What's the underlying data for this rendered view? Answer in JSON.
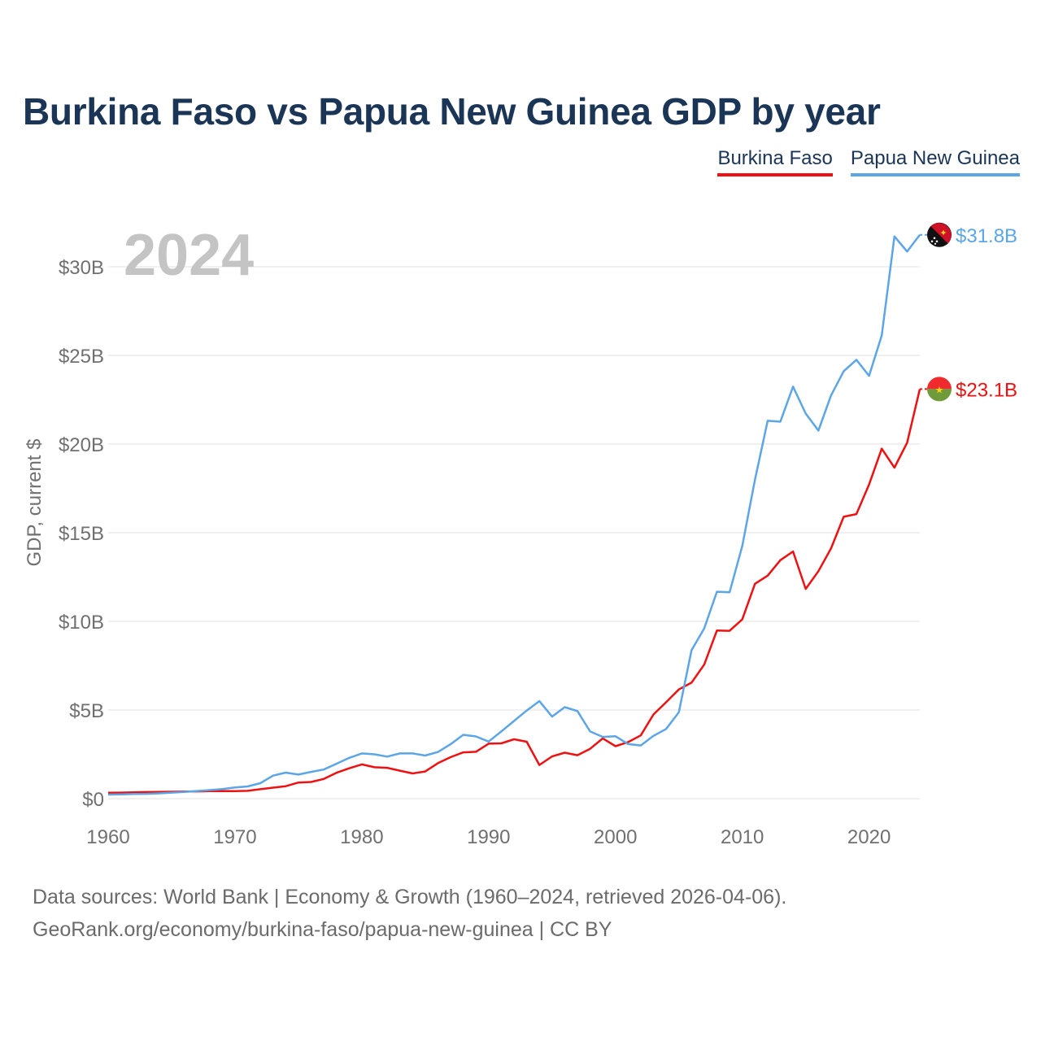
{
  "title": "Burkina Faso vs Papua New Guinea GDP by year",
  "chart_data": {
    "type": "line",
    "title": "Burkina Faso vs Papua New Guinea GDP by year",
    "ylabel": "GDP, current $",
    "xlabel": "",
    "year_watermark": "2024",
    "xlim": [
      1960,
      2024
    ],
    "ylim": [
      0,
      33
    ],
    "x_ticks": [
      1960,
      1970,
      1980,
      1990,
      2000,
      2010,
      2020
    ],
    "x_tick_labels": [
      "1960",
      "1970",
      "1980",
      "1990",
      "2000",
      "2010",
      "2020"
    ],
    "y_ticks": [
      0,
      5,
      10,
      15,
      20,
      25,
      30
    ],
    "y_tick_labels": [
      "$0",
      "$5B",
      "$10B",
      "$15B",
      "$20B",
      "$25B",
      "$30B"
    ],
    "units": "billions of current US dollars",
    "grid": true,
    "legend_position": "top-right",
    "x": [
      1960,
      1961,
      1962,
      1963,
      1964,
      1965,
      1966,
      1967,
      1968,
      1969,
      1970,
      1971,
      1972,
      1973,
      1974,
      1975,
      1976,
      1977,
      1978,
      1979,
      1980,
      1981,
      1982,
      1983,
      1984,
      1985,
      1986,
      1987,
      1988,
      1989,
      1990,
      1991,
      1992,
      1993,
      1994,
      1995,
      1996,
      1997,
      1998,
      1999,
      2000,
      2001,
      2002,
      2003,
      2004,
      2005,
      2006,
      2007,
      2008,
      2009,
      2010,
      2011,
      2012,
      2013,
      2014,
      2015,
      2016,
      2017,
      2018,
      2019,
      2020,
      2021,
      2022,
      2023,
      2024
    ],
    "series": [
      {
        "name": "Burkina Faso",
        "color": "#ee1111",
        "end_label": "$23.1B",
        "values": [
          0.33,
          0.34,
          0.36,
          0.37,
          0.38,
          0.39,
          0.4,
          0.41,
          0.42,
          0.43,
          0.42,
          0.44,
          0.53,
          0.62,
          0.7,
          0.91,
          0.94,
          1.11,
          1.46,
          1.71,
          1.93,
          1.77,
          1.74,
          1.58,
          1.42,
          1.53,
          2.0,
          2.34,
          2.61,
          2.64,
          3.1,
          3.12,
          3.35,
          3.21,
          1.9,
          2.38,
          2.59,
          2.45,
          2.81,
          3.4,
          2.96,
          3.19,
          3.57,
          4.75,
          5.44,
          6.16,
          6.54,
          7.56,
          9.48,
          9.47,
          10.11,
          12.12,
          12.58,
          13.45,
          13.94,
          11.83,
          12.83,
          14.11,
          15.9,
          16.05,
          17.72,
          19.74,
          18.67,
          20.08,
          23.1
        ]
      },
      {
        "name": "Papua New Guinea",
        "color": "#5ca5e6",
        "end_label": "$31.8B",
        "values": [
          0.23,
          0.24,
          0.26,
          0.27,
          0.3,
          0.34,
          0.38,
          0.43,
          0.48,
          0.54,
          0.63,
          0.69,
          0.87,
          1.3,
          1.47,
          1.36,
          1.51,
          1.64,
          1.97,
          2.3,
          2.55,
          2.5,
          2.37,
          2.55,
          2.55,
          2.43,
          2.63,
          3.07,
          3.6,
          3.51,
          3.22,
          3.79,
          4.38,
          4.97,
          5.5,
          4.63,
          5.16,
          4.94,
          3.79,
          3.48,
          3.52,
          3.08,
          3.0,
          3.54,
          3.93,
          4.87,
          8.37,
          9.6,
          11.67,
          11.64,
          14.25,
          17.99,
          21.31,
          21.26,
          23.24,
          21.72,
          20.76,
          22.74,
          24.11,
          24.75,
          23.85,
          26.13,
          31.71,
          30.86,
          31.8
        ]
      }
    ]
  },
  "sources": {
    "line1": "Data sources: World Bank | Economy & Growth (1960–2024, retrieved 2026-04-06).",
    "line2": "GeoRank.org/economy/burkina-faso/papua-new-guinea | CC BY"
  }
}
